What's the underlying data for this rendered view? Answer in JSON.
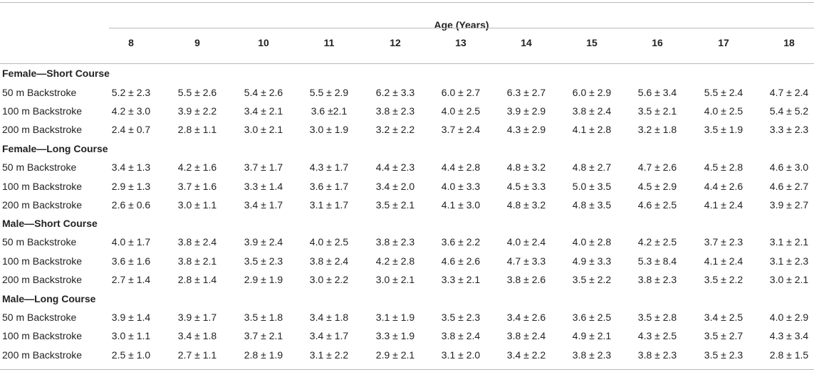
{
  "table": {
    "super_header": "Age (Years)",
    "ages": [
      "8",
      "9",
      "10",
      "11",
      "12",
      "13",
      "14",
      "15",
      "16",
      "17",
      "18"
    ],
    "sections": [
      {
        "title": "Female—Short Course",
        "rows": [
          {
            "label": "50 m Backstroke",
            "values": [
              "5.2 ± 2.3",
              "5.5 ± 2.6",
              "5.4 ± 2.6",
              "5.5 ± 2.9",
              "6.2 ± 3.3",
              "6.0 ± 2.7",
              "6.3 ± 2.7",
              "6.0 ± 2.9",
              "5.6 ± 3.4",
              "5.5 ± 2.4",
              "4.7 ± 2.4"
            ]
          },
          {
            "label": "100 m Backstroke",
            "values": [
              "4.2 ± 3.0",
              "3.9 ± 2.2",
              "3.4 ± 2.1",
              "3.6 ±2.1",
              "3.8 ± 2.3",
              "4.0 ± 2.5",
              "3.9 ± 2.9",
              "3.8 ± 2.4",
              "3.5 ± 2.1",
              "4.0 ± 2.5",
              "5.4 ± 5.2"
            ]
          },
          {
            "label": "200 m Backstroke",
            "values": [
              "2.4 ± 0.7",
              "2.8 ± 1.1",
              "3.0 ± 2.1",
              "3.0 ± 1.9",
              "3.2 ± 2.2",
              "3.7 ± 2.4",
              "4.3 ± 2.9",
              "4.1 ± 2.8",
              "3.2 ± 1.8",
              "3.5 ± 1.9",
              "3.3 ± 2.3"
            ]
          }
        ]
      },
      {
        "title": "Female—Long Course",
        "rows": [
          {
            "label": "50 m Backstroke",
            "values": [
              "3.4 ± 1.3",
              "4.2 ± 1.6",
              "3.7 ± 1.7",
              "4.3 ± 1.7",
              "4.4 ± 2.3",
              "4.4 ± 2.8",
              "4.8 ± 3.2",
              "4.8 ± 2.7",
              "4.7 ± 2.6",
              "4.5 ± 2.8",
              "4.6 ± 3.0"
            ]
          },
          {
            "label": "100 m Backstroke",
            "values": [
              "2.9 ± 1.3",
              "3.7 ± 1.6",
              "3.3 ± 1.4",
              "3.6 ± 1.7",
              "3.4 ± 2.0",
              "4.0 ± 3.3",
              "4.5 ± 3.3",
              "5.0 ± 3.5",
              "4.5 ± 2.9",
              "4.4 ± 2.6",
              "4.6 ± 2.7"
            ]
          },
          {
            "label": "200 m Backstroke",
            "values": [
              "2.6 ± 0.6",
              "3.0 ± 1.1",
              "3.4 ± 1.7",
              "3.1 ± 1.7",
              "3.5 ± 2.1",
              "4.1 ± 3.0",
              "4.8 ± 3.2",
              "4.8 ± 3.5",
              "4.6 ± 2.5",
              "4.1 ± 2.4",
              "3.9 ± 2.7"
            ]
          }
        ]
      },
      {
        "title": "Male—Short Course",
        "rows": [
          {
            "label": "50 m Backstroke",
            "values": [
              "4.0 ± 1.7",
              "3.8 ± 2.4",
              "3.9 ± 2.4",
              "4.0 ± 2.5",
              "3.8 ± 2.3",
              "3.6 ± 2.2",
              "4.0 ± 2.4",
              "4.0 ± 2.8",
              "4.2 ± 2.5",
              "3.7 ± 2.3",
              "3.1 ± 2.1"
            ]
          },
          {
            "label": "100 m Backstroke",
            "values": [
              "3.6 ± 1.6",
              "3.8 ± 2.1",
              "3.5 ± 2.3",
              "3.8 ± 2.4",
              "4.2 ± 2.8",
              "4.6 ± 2.6",
              "4.7 ± 3.3",
              "4.9 ± 3.3",
              "5.3 ± 8.4",
              "4.1 ± 2.4",
              "3.1 ± 2.3"
            ]
          },
          {
            "label": "200 m Backstroke",
            "values": [
              "2.7 ± 1.4",
              "2.8 ± 1.4",
              "2.9 ± 1.9",
              "3.0 ± 2.2",
              "3.0 ± 2.1",
              "3.3 ± 2.1",
              "3.8 ± 2.6",
              "3.5 ± 2.2",
              "3.8 ± 2.3",
              "3.5 ± 2.2",
              "3.0 ± 2.1"
            ]
          }
        ]
      },
      {
        "title": "Male—Long Course",
        "rows": [
          {
            "label": "50 m Backstroke",
            "values": [
              "3.9 ± 1.4",
              "3.9 ± 1.7",
              "3.5 ± 1.8",
              "3.4 ± 1.8",
              "3.1 ± 1.9",
              "3.5 ± 2.3",
              "3.4 ± 2.6",
              "3.6 ± 2.5",
              "3.5 ± 2.8",
              "3.4 ± 2.5",
              "4.0 ± 2.9"
            ]
          },
          {
            "label": "100 m Backstroke",
            "values": [
              "3.0 ± 1.1",
              "3.4 ± 1.8",
              "3.7 ± 2.1",
              "3.4 ± 1.7",
              "3.3 ± 1.9",
              "3.8 ± 2.4",
              "3.8 ± 2.4",
              "4.9 ± 2.1",
              "4.3 ± 2.5",
              "3.5 ± 2.7",
              "4.3 ± 3.4"
            ]
          },
          {
            "label": "200 m Backstroke",
            "values": [
              "2.5 ± 1.0",
              "2.7 ± 1.1",
              "2.8 ± 1.9",
              "3.1 ± 2.2",
              "2.9 ± 2.1",
              "3.1 ± 2.0",
              "3.4 ± 2.2",
              "3.8 ± 2.3",
              "3.8 ± 2.3",
              "3.5 ± 2.3",
              "2.8 ± 1.5"
            ]
          }
        ]
      }
    ]
  }
}
